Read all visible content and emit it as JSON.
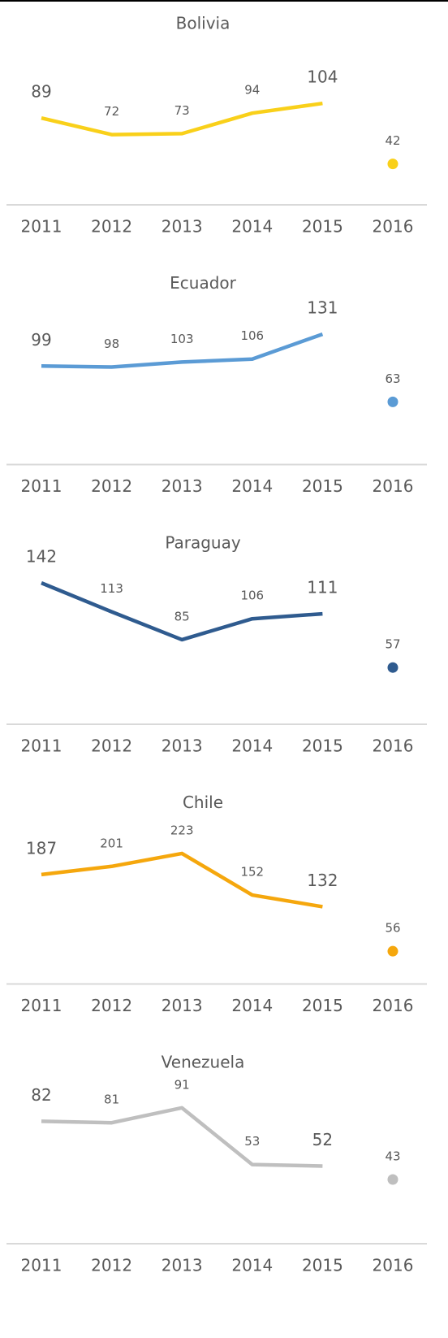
{
  "chart_data": [
    {
      "type": "line",
      "title": "Bolivia",
      "categories": [
        "2011",
        "2012",
        "2013",
        "2014",
        "2015",
        "2016"
      ],
      "ylim": [
        0,
        150
      ],
      "series": [
        {
          "color": "#f9d01a",
          "values": [
            89,
            72,
            73,
            94,
            104,
            null
          ]
        },
        {
          "color": "#f9d01a",
          "marker": "dot",
          "values": [
            null,
            null,
            null,
            null,
            null,
            42
          ]
        }
      ]
    },
    {
      "type": "line",
      "title": "Ecuador",
      "categories": [
        "2011",
        "2012",
        "2013",
        "2014",
        "2015",
        "2016"
      ],
      "ylim": [
        0,
        147
      ],
      "series": [
        {
          "color": "#5b9bd5",
          "values": [
            99,
            98,
            103,
            106,
            131,
            null
          ]
        },
        {
          "color": "#5b9bd5",
          "marker": "dot",
          "values": [
            null,
            null,
            null,
            null,
            null,
            63
          ]
        }
      ]
    },
    {
      "type": "line",
      "title": "Paraguay",
      "categories": [
        "2011",
        "2012",
        "2013",
        "2014",
        "2015",
        "2016"
      ],
      "ylim": [
        0,
        147
      ],
      "series": [
        {
          "color": "#2f5b8f",
          "values": [
            142,
            113,
            85,
            106,
            111,
            null
          ]
        },
        {
          "color": "#2f5b8f",
          "marker": "dot",
          "values": [
            null,
            null,
            null,
            null,
            null,
            57
          ]
        }
      ]
    },
    {
      "type": "line",
      "title": "Chile",
      "categories": [
        "2011",
        "2012",
        "2013",
        "2014",
        "2015",
        "2016"
      ],
      "ylim": [
        0,
        250
      ],
      "series": [
        {
          "color": "#f5a70d",
          "values": [
            187,
            201,
            223,
            152,
            132,
            null
          ]
        },
        {
          "color": "#f5a70d",
          "marker": "dot",
          "values": [
            null,
            null,
            null,
            null,
            null,
            56
          ]
        }
      ]
    },
    {
      "type": "line",
      "title": "Venezuela",
      "categories": [
        "2011",
        "2012",
        "2013",
        "2014",
        "2015",
        "2016"
      ],
      "ylim": [
        0,
        98
      ],
      "series": [
        {
          "color": "#bfbfbf",
          "values": [
            82,
            81,
            91,
            53,
            52,
            null
          ]
        },
        {
          "color": "#bfbfbf",
          "marker": "dot",
          "values": [
            null,
            null,
            null,
            null,
            null,
            43
          ]
        }
      ]
    }
  ]
}
